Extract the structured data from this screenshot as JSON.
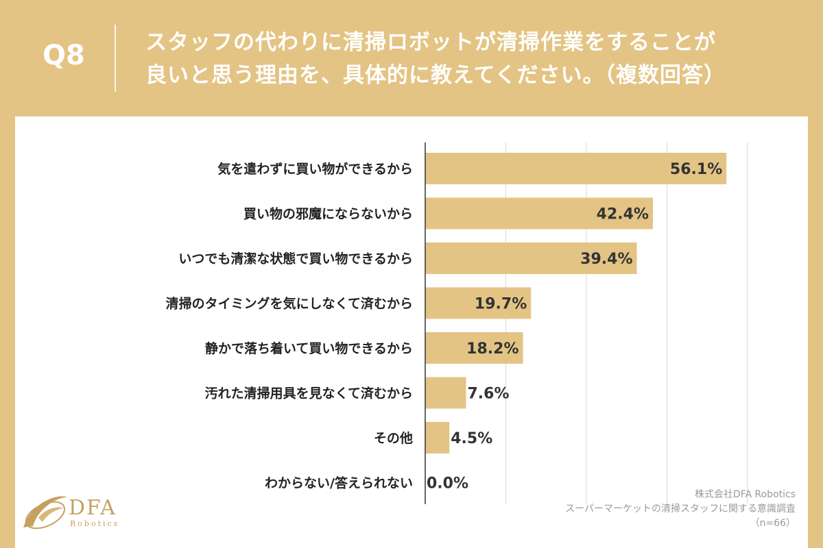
{
  "header": {
    "q_label": "Q8",
    "title_line1": "スタッフの代わりに清掃ロボットが清掃作業をすることが",
    "title_line2": "良いと思う理由を、具体的に教えてください。（複数回答）"
  },
  "chart_data": {
    "type": "bar",
    "orientation": "horizontal",
    "categories": [
      "気を遣わずに買い物ができるから",
      "買い物の邪魔にならないから",
      "いつでも清潔な状態で買い物できるから",
      "清掃のタイミングを気にしなくて済むから",
      "静かで落ち着いて買い物できるから",
      "汚れた清掃用具を見なくて済むから",
      "その他",
      "わからない/答えられない"
    ],
    "values": [
      56.1,
      42.4,
      39.4,
      19.7,
      18.2,
      7.6,
      4.5,
      0.0
    ],
    "value_labels": [
      "56.1%",
      "42.4%",
      "39.4%",
      "19.7%",
      "18.2%",
      "7.6%",
      "4.5%",
      "0.0%"
    ],
    "xlim": [
      0,
      60
    ],
    "gridlines": [
      15,
      30,
      45,
      60
    ],
    "grid": true,
    "bar_color": "#e3c484"
  },
  "source": {
    "line1": "株式会社DFA Robotics",
    "line2": "スーパーマーケットの清掃スタッフに関する意識調査",
    "line3": "（n=66）"
  },
  "logo": {
    "main": "DFA",
    "sub": "Robotics"
  },
  "colors": {
    "background": "#e3c484",
    "panel": "#ffffff",
    "grid": "#d9d9d9",
    "axis": "#333333"
  }
}
